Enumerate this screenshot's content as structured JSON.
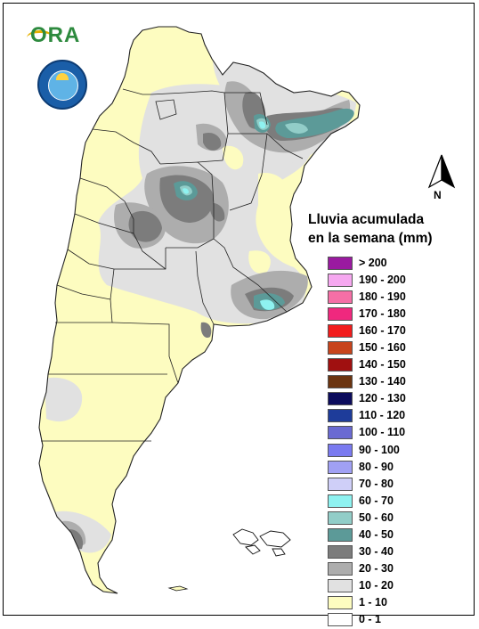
{
  "logos": {
    "ora_text": "ORA"
  },
  "north_label": "N",
  "legend": {
    "title_line1": "Lluvia acumulada",
    "title_line2": "en la semana (mm)",
    "items": [
      {
        "label": "> 200",
        "color": "#9a1aa0"
      },
      {
        "label": "190 - 200",
        "color": "#f6a8f0"
      },
      {
        "label": "180 - 190",
        "color": "#f56fa6"
      },
      {
        "label": "170 - 180",
        "color": "#f0287e"
      },
      {
        "label": "160 - 170",
        "color": "#f21c1c"
      },
      {
        "label": "150 - 160",
        "color": "#c8441c"
      },
      {
        "label": "140 - 150",
        "color": "#a01010"
      },
      {
        "label": "130 - 140",
        "color": "#6b3410"
      },
      {
        "label": "120 - 130",
        "color": "#0c0c5c"
      },
      {
        "label": "110 - 120",
        "color": "#1e3c9a"
      },
      {
        "label": "100 - 110",
        "color": "#6a6ad2"
      },
      {
        "label": "90 - 100",
        "color": "#7a7af0"
      },
      {
        "label": "80 - 90",
        "color": "#a0a0f4"
      },
      {
        "label": "70 - 80",
        "color": "#cfcff8"
      },
      {
        "label": "60 - 70",
        "color": "#8ef2f0"
      },
      {
        "label": "50 - 60",
        "color": "#92cdc8"
      },
      {
        "label": "40 - 50",
        "color": "#5c9a98"
      },
      {
        "label": "30 - 40",
        "color": "#7c7c7c"
      },
      {
        "label": "20 - 30",
        "color": "#adadad"
      },
      {
        "label": "10 - 20",
        "color": "#e1e1e1"
      },
      {
        "label": "1 - 10",
        "color": "#fdfcc0"
      },
      {
        "label": "0 - 1",
        "color": "#ffffff"
      }
    ]
  }
}
